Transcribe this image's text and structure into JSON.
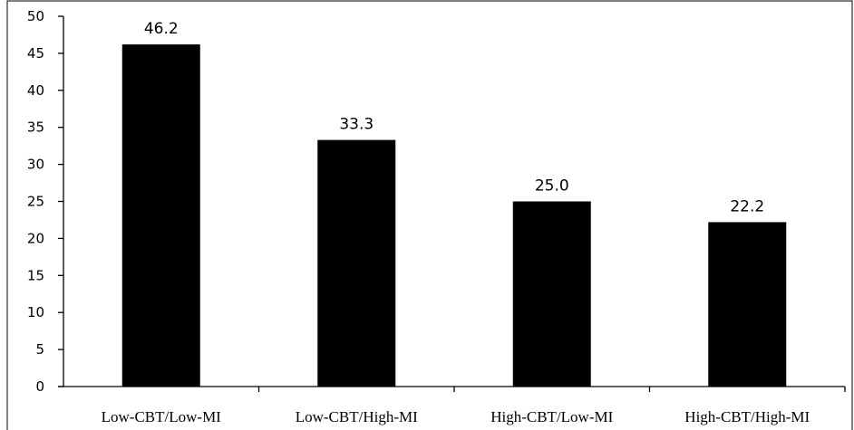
{
  "chart_data": {
    "type": "bar",
    "categories": [
      "Low-CBT/Low-MI",
      "Low-CBT/High-MI",
      "High-CBT/Low-MI",
      "High-CBT/High-MI"
    ],
    "values": [
      46.2,
      33.3,
      25.0,
      22.2
    ],
    "data_labels": [
      "46.2",
      "33.3",
      "25.0",
      "22.2"
    ],
    "title": "",
    "xlabel": "",
    "ylabel": "",
    "ylim": [
      0,
      50
    ],
    "yticks": [
      0,
      5,
      10,
      15,
      20,
      25,
      30,
      35,
      40,
      45,
      50
    ],
    "grid": false,
    "legend": "none",
    "colors": {
      "bar": "#000000",
      "axis": "#000000",
      "frame": "#000000"
    }
  }
}
